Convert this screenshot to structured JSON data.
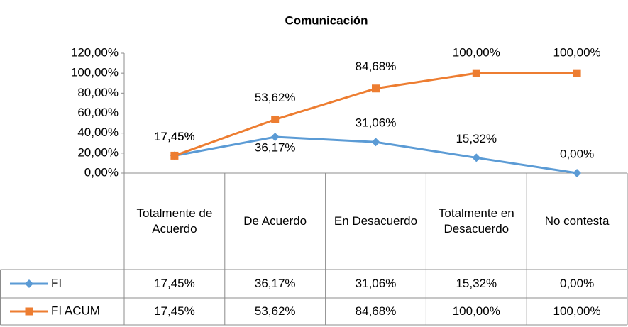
{
  "chart_data": {
    "type": "line",
    "title": "Comunicación",
    "categories": [
      "Totalmente de Acuerdo",
      "De Acuerdo",
      "En Desacuerdo",
      "Totalmente en Desacuerdo",
      "No contesta"
    ],
    "series": [
      {
        "name": "FI",
        "color": "#5b9bd5",
        "values": [
          17.45,
          36.17,
          31.06,
          15.32,
          0
        ],
        "value_labels": [
          "17,45%",
          "36,17%",
          "31,06%",
          "15,32%",
          "0,00%"
        ]
      },
      {
        "name": "FI ACUM",
        "color": "#ed7d31",
        "values": [
          17.45,
          53.62,
          84.68,
          100,
          100
        ],
        "value_labels": [
          "17,45%",
          "53,62%",
          "84,68%",
          "100,00%",
          "100,00%"
        ]
      }
    ],
    "ylim": [
      0,
      120
    ],
    "yticks": [
      {
        "value": 0,
        "label": "0,00%"
      },
      {
        "value": 20,
        "label": "20,00%"
      },
      {
        "value": 40,
        "label": "40,00%"
      },
      {
        "value": 60,
        "label": "60,00%"
      },
      {
        "value": 80,
        "label": "80,00%"
      },
      {
        "value": 100,
        "label": "100,00%"
      },
      {
        "value": 120,
        "label": "120,00%"
      }
    ],
    "grid": false
  }
}
